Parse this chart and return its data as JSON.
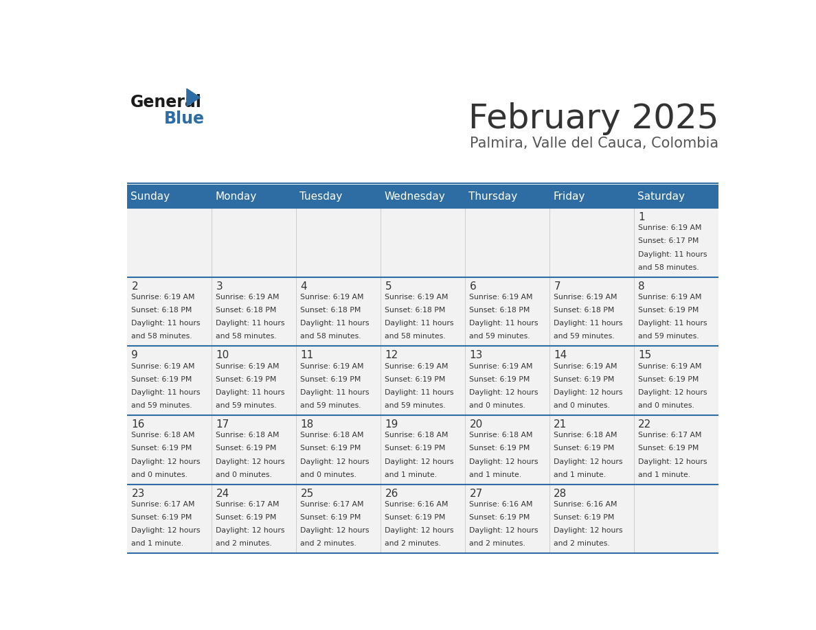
{
  "title": "February 2025",
  "subtitle": "Palmira, Valle del Cauca, Colombia",
  "header_bg": "#2E6DA4",
  "header_text_color": "#FFFFFF",
  "cell_bg": "#F2F2F2",
  "border_color": "#2E6DA4",
  "days_of_week": [
    "Sunday",
    "Monday",
    "Tuesday",
    "Wednesday",
    "Thursday",
    "Friday",
    "Saturday"
  ],
  "title_color": "#333333",
  "subtitle_color": "#555555",
  "calendar": [
    [
      null,
      null,
      null,
      null,
      null,
      null,
      {
        "day": 1,
        "sunrise": "6:19 AM",
        "sunset": "6:17 PM",
        "daylight": "11 hours and 58 minutes."
      }
    ],
    [
      {
        "day": 2,
        "sunrise": "6:19 AM",
        "sunset": "6:18 PM",
        "daylight": "11 hours and 58 minutes."
      },
      {
        "day": 3,
        "sunrise": "6:19 AM",
        "sunset": "6:18 PM",
        "daylight": "11 hours and 58 minutes."
      },
      {
        "day": 4,
        "sunrise": "6:19 AM",
        "sunset": "6:18 PM",
        "daylight": "11 hours and 58 minutes."
      },
      {
        "day": 5,
        "sunrise": "6:19 AM",
        "sunset": "6:18 PM",
        "daylight": "11 hours and 58 minutes."
      },
      {
        "day": 6,
        "sunrise": "6:19 AM",
        "sunset": "6:18 PM",
        "daylight": "11 hours and 59 minutes."
      },
      {
        "day": 7,
        "sunrise": "6:19 AM",
        "sunset": "6:18 PM",
        "daylight": "11 hours and 59 minutes."
      },
      {
        "day": 8,
        "sunrise": "6:19 AM",
        "sunset": "6:19 PM",
        "daylight": "11 hours and 59 minutes."
      }
    ],
    [
      {
        "day": 9,
        "sunrise": "6:19 AM",
        "sunset": "6:19 PM",
        "daylight": "11 hours and 59 minutes."
      },
      {
        "day": 10,
        "sunrise": "6:19 AM",
        "sunset": "6:19 PM",
        "daylight": "11 hours and 59 minutes."
      },
      {
        "day": 11,
        "sunrise": "6:19 AM",
        "sunset": "6:19 PM",
        "daylight": "11 hours and 59 minutes."
      },
      {
        "day": 12,
        "sunrise": "6:19 AM",
        "sunset": "6:19 PM",
        "daylight": "11 hours and 59 minutes."
      },
      {
        "day": 13,
        "sunrise": "6:19 AM",
        "sunset": "6:19 PM",
        "daylight": "12 hours and 0 minutes."
      },
      {
        "day": 14,
        "sunrise": "6:19 AM",
        "sunset": "6:19 PM",
        "daylight": "12 hours and 0 minutes."
      },
      {
        "day": 15,
        "sunrise": "6:19 AM",
        "sunset": "6:19 PM",
        "daylight": "12 hours and 0 minutes."
      }
    ],
    [
      {
        "day": 16,
        "sunrise": "6:18 AM",
        "sunset": "6:19 PM",
        "daylight": "12 hours and 0 minutes."
      },
      {
        "day": 17,
        "sunrise": "6:18 AM",
        "sunset": "6:19 PM",
        "daylight": "12 hours and 0 minutes."
      },
      {
        "day": 18,
        "sunrise": "6:18 AM",
        "sunset": "6:19 PM",
        "daylight": "12 hours and 0 minutes."
      },
      {
        "day": 19,
        "sunrise": "6:18 AM",
        "sunset": "6:19 PM",
        "daylight": "12 hours and 1 minute."
      },
      {
        "day": 20,
        "sunrise": "6:18 AM",
        "sunset": "6:19 PM",
        "daylight": "12 hours and 1 minute."
      },
      {
        "day": 21,
        "sunrise": "6:18 AM",
        "sunset": "6:19 PM",
        "daylight": "12 hours and 1 minute."
      },
      {
        "day": 22,
        "sunrise": "6:17 AM",
        "sunset": "6:19 PM",
        "daylight": "12 hours and 1 minute."
      }
    ],
    [
      {
        "day": 23,
        "sunrise": "6:17 AM",
        "sunset": "6:19 PM",
        "daylight": "12 hours and 1 minute."
      },
      {
        "day": 24,
        "sunrise": "6:17 AM",
        "sunset": "6:19 PM",
        "daylight": "12 hours and 2 minutes."
      },
      {
        "day": 25,
        "sunrise": "6:17 AM",
        "sunset": "6:19 PM",
        "daylight": "12 hours and 2 minutes."
      },
      {
        "day": 26,
        "sunrise": "6:16 AM",
        "sunset": "6:19 PM",
        "daylight": "12 hours and 2 minutes."
      },
      {
        "day": 27,
        "sunrise": "6:16 AM",
        "sunset": "6:19 PM",
        "daylight": "12 hours and 2 minutes."
      },
      {
        "day": 28,
        "sunrise": "6:16 AM",
        "sunset": "6:19 PM",
        "daylight": "12 hours and 2 minutes."
      },
      null
    ]
  ]
}
